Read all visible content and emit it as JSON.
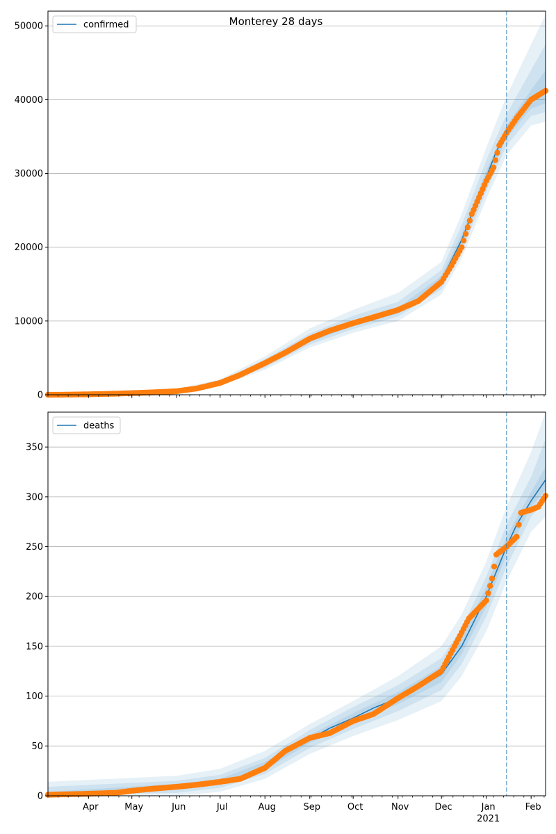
{
  "title": "Monterey 28 days",
  "colors": {
    "line": "#1f77b4",
    "points": "#ff7f0e",
    "band": "#1f77b4",
    "grid": "#b0b0b0",
    "vline": "#1f77b4"
  },
  "x_axis": {
    "start": "2020-03-04",
    "end": "2021-02-11",
    "month_labels": [
      {
        "date": "2020-04-01",
        "label": "Apr"
      },
      {
        "date": "2020-05-01",
        "label": "May"
      },
      {
        "date": "2020-06-01",
        "label": "Jun"
      },
      {
        "date": "2020-07-01",
        "label": "Jul"
      },
      {
        "date": "2020-08-01",
        "label": "Aug"
      },
      {
        "date": "2020-09-01",
        "label": "Sep"
      },
      {
        "date": "2020-10-01",
        "label": "Oct"
      },
      {
        "date": "2020-11-01",
        "label": "Nov"
      },
      {
        "date": "2020-12-01",
        "label": "Dec"
      },
      {
        "date": "2021-01-01",
        "label": "Jan"
      },
      {
        "date": "2021-02-01",
        "label": "Feb"
      }
    ],
    "year_label": {
      "date": "2021-01-01",
      "label": "2021"
    },
    "forecast_start": "2021-01-15"
  },
  "chart_data": [
    {
      "type": "line",
      "name": "confirmed",
      "legend": "confirmed",
      "legend_position": "top-left",
      "grid": "y",
      "ylim": [
        0,
        52000
      ],
      "yticks": [
        0,
        10000,
        20000,
        30000,
        40000,
        50000
      ],
      "model": [
        {
          "x": "2020-03-04",
          "y": 0
        },
        {
          "x": "2020-04-01",
          "y": 50
        },
        {
          "x": "2020-05-01",
          "y": 200
        },
        {
          "x": "2020-06-01",
          "y": 500
        },
        {
          "x": "2020-06-15",
          "y": 900
        },
        {
          "x": "2020-07-01",
          "y": 1600
        },
        {
          "x": "2020-07-15",
          "y": 2600
        },
        {
          "x": "2020-08-01",
          "y": 4200
        },
        {
          "x": "2020-08-15",
          "y": 5800
        },
        {
          "x": "2020-09-01",
          "y": 7500
        },
        {
          "x": "2020-09-15",
          "y": 8700
        },
        {
          "x": "2020-10-01",
          "y": 9700
        },
        {
          "x": "2020-10-15",
          "y": 10500
        },
        {
          "x": "2020-11-01",
          "y": 11400
        },
        {
          "x": "2020-11-15",
          "y": 12700
        },
        {
          "x": "2020-12-01",
          "y": 15500
        },
        {
          "x": "2020-12-15",
          "y": 21000
        },
        {
          "x": "2021-01-01",
          "y": 29500
        },
        {
          "x": "2021-01-08",
          "y": 33000
        },
        {
          "x": "2021-01-15",
          "y": 35600
        },
        {
          "x": "2021-01-22",
          "y": 37500
        },
        {
          "x": "2021-02-01",
          "y": 39800
        },
        {
          "x": "2021-02-11",
          "y": 41500
        }
      ],
      "bands": [
        {
          "level": "outer",
          "x": [
            "2020-03-04",
            "2020-06-01",
            "2020-07-01",
            "2020-08-01",
            "2020-09-01",
            "2020-10-01",
            "2020-11-01",
            "2020-12-01",
            "2020-12-15",
            "2021-01-01",
            "2021-01-15",
            "2021-02-01",
            "2021-02-11"
          ],
          "lower": [
            0,
            300,
            1200,
            3400,
            6400,
            8400,
            10000,
            13600,
            18500,
            26500,
            32500,
            36500,
            37000
          ],
          "upper": [
            300,
            800,
            2100,
            5200,
            9000,
            11500,
            13800,
            18000,
            24500,
            33500,
            40500,
            47500,
            51500
          ]
        },
        {
          "level": "middle",
          "x": [
            "2020-03-04",
            "2020-06-01",
            "2020-07-01",
            "2020-08-01",
            "2020-09-01",
            "2020-10-01",
            "2020-11-01",
            "2020-12-01",
            "2020-12-15",
            "2021-01-01",
            "2021-01-15",
            "2021-02-01",
            "2021-02-11"
          ],
          "lower": [
            0,
            380,
            1350,
            3700,
            6800,
            8900,
            10600,
            14300,
            19400,
            27600,
            33800,
            37800,
            38300
          ],
          "upper": [
            200,
            650,
            1850,
            4800,
            8300,
            10700,
            12600,
            16900,
            23000,
            31800,
            38000,
            44000,
            47500
          ]
        },
        {
          "level": "inner",
          "x": [
            "2020-03-04",
            "2020-06-01",
            "2020-07-01",
            "2020-08-01",
            "2020-09-01",
            "2020-10-01",
            "2020-11-01",
            "2020-12-01",
            "2020-12-15",
            "2021-01-01",
            "2021-01-15",
            "2021-02-01",
            "2021-02-11"
          ],
          "lower": [
            0,
            440,
            1480,
            3950,
            7150,
            9300,
            11000,
            14900,
            20200,
            28600,
            34800,
            38800,
            39500
          ],
          "upper": [
            100,
            570,
            1720,
            4450,
            7850,
            10100,
            11800,
            16100,
            21800,
            30400,
            36500,
            41300,
            44000
          ]
        }
      ],
      "observed": [
        {
          "x": "2020-03-04",
          "y": 0
        },
        {
          "x": "2020-03-20",
          "y": 20
        },
        {
          "x": "2020-04-01",
          "y": 60
        },
        {
          "x": "2020-04-15",
          "y": 120
        },
        {
          "x": "2020-05-01",
          "y": 220
        },
        {
          "x": "2020-05-15",
          "y": 320
        },
        {
          "x": "2020-06-01",
          "y": 480
        },
        {
          "x": "2020-06-15",
          "y": 850
        },
        {
          "x": "2020-07-01",
          "y": 1600
        },
        {
          "x": "2020-07-15",
          "y": 2700
        },
        {
          "x": "2020-08-01",
          "y": 4300
        },
        {
          "x": "2020-08-15",
          "y": 5700
        },
        {
          "x": "2020-09-01",
          "y": 7600
        },
        {
          "x": "2020-09-15",
          "y": 8700
        },
        {
          "x": "2020-10-01",
          "y": 9700
        },
        {
          "x": "2020-10-15",
          "y": 10500
        },
        {
          "x": "2020-11-01",
          "y": 11500
        },
        {
          "x": "2020-11-15",
          "y": 12700
        },
        {
          "x": "2020-12-01",
          "y": 15300
        },
        {
          "x": "2020-12-08",
          "y": 17500
        },
        {
          "x": "2020-12-15",
          "y": 20000
        },
        {
          "x": "2020-12-22",
          "y": 24500
        },
        {
          "x": "2021-01-01",
          "y": 29000
        },
        {
          "x": "2021-01-06",
          "y": 30800
        },
        {
          "x": "2021-01-10",
          "y": 33800
        },
        {
          "x": "2021-01-15",
          "y": 35500
        },
        {
          "x": "2021-01-22",
          "y": 37500
        },
        {
          "x": "2021-02-01",
          "y": 40000
        },
        {
          "x": "2021-02-11",
          "y": 41200
        }
      ]
    },
    {
      "type": "line",
      "name": "deaths",
      "legend": "deaths",
      "legend_position": "top-left",
      "grid": "y",
      "ylim": [
        0,
        385
      ],
      "yticks": [
        0,
        50,
        100,
        150,
        200,
        250,
        300,
        350
      ],
      "model": [
        {
          "x": "2020-03-04",
          "y": 0
        },
        {
          "x": "2020-04-01",
          "y": 2
        },
        {
          "x": "2020-05-01",
          "y": 5
        },
        {
          "x": "2020-06-01",
          "y": 9
        },
        {
          "x": "2020-07-01",
          "y": 14
        },
        {
          "x": "2020-07-15",
          "y": 19
        },
        {
          "x": "2020-08-01",
          "y": 30
        },
        {
          "x": "2020-08-15",
          "y": 43
        },
        {
          "x": "2020-09-01",
          "y": 57
        },
        {
          "x": "2020-09-15",
          "y": 68
        },
        {
          "x": "2020-10-01",
          "y": 78
        },
        {
          "x": "2020-10-15",
          "y": 88
        },
        {
          "x": "2020-11-01",
          "y": 98
        },
        {
          "x": "2020-11-15",
          "y": 108
        },
        {
          "x": "2020-12-01",
          "y": 122
        },
        {
          "x": "2020-12-15",
          "y": 150
        },
        {
          "x": "2021-01-01",
          "y": 200
        },
        {
          "x": "2021-01-08",
          "y": 225
        },
        {
          "x": "2021-01-15",
          "y": 250
        },
        {
          "x": "2021-01-22",
          "y": 272
        },
        {
          "x": "2021-02-01",
          "y": 296
        },
        {
          "x": "2021-02-11",
          "y": 317
        }
      ],
      "bands": [
        {
          "level": "outer",
          "x": [
            "2020-03-04",
            "2020-06-01",
            "2020-07-01",
            "2020-08-01",
            "2020-09-01",
            "2020-10-01",
            "2020-11-01",
            "2020-12-01",
            "2020-12-15",
            "2021-01-01",
            "2021-01-15",
            "2021-02-01",
            "2021-02-11"
          ],
          "lower": [
            0,
            0,
            4,
            17,
            42,
            60,
            76,
            95,
            120,
            165,
            215,
            265,
            280
          ],
          "upper": [
            14,
            20,
            27,
            45,
            72,
            95,
            120,
            150,
            182,
            235,
            290,
            345,
            385
          ]
        },
        {
          "level": "middle",
          "x": [
            "2020-03-04",
            "2020-06-01",
            "2020-07-01",
            "2020-08-01",
            "2020-09-01",
            "2020-10-01",
            "2020-11-01",
            "2020-12-01",
            "2020-12-15",
            "2021-01-01",
            "2021-01-15",
            "2021-02-01",
            "2021-02-11"
          ],
          "lower": [
            0,
            3,
            8,
            22,
            48,
            67,
            85,
            106,
            132,
            180,
            230,
            280,
            298
          ],
          "upper": [
            9,
            15,
            21,
            38,
            66,
            89,
            111,
            138,
            168,
            220,
            272,
            320,
            358
          ]
        },
        {
          "level": "inner",
          "x": [
            "2020-03-04",
            "2020-06-01",
            "2020-07-01",
            "2020-08-01",
            "2020-09-01",
            "2020-10-01",
            "2020-11-01",
            "2020-12-01",
            "2020-12-15",
            "2021-01-01",
            "2021-01-15",
            "2021-02-01",
            "2021-02-11"
          ],
          "lower": [
            0,
            6,
            11,
            26,
            53,
            73,
            92,
            114,
            142,
            190,
            242,
            290,
            307
          ],
          "upper": [
            4,
            12,
            17,
            34,
            61,
            83,
            104,
            130,
            158,
            210,
            260,
            305,
            330
          ]
        }
      ],
      "observed": [
        {
          "x": "2020-03-04",
          "y": 1
        },
        {
          "x": "2020-04-01",
          "y": 2
        },
        {
          "x": "2020-04-20",
          "y": 3
        },
        {
          "x": "2020-05-01",
          "y": 5
        },
        {
          "x": "2020-05-15",
          "y": 7
        },
        {
          "x": "2020-06-01",
          "y": 9
        },
        {
          "x": "2020-06-15",
          "y": 11
        },
        {
          "x": "2020-07-01",
          "y": 14
        },
        {
          "x": "2020-07-15",
          "y": 17
        },
        {
          "x": "2020-08-01",
          "y": 28
        },
        {
          "x": "2020-08-15",
          "y": 45
        },
        {
          "x": "2020-09-01",
          "y": 58
        },
        {
          "x": "2020-09-15",
          "y": 63
        },
        {
          "x": "2020-10-01",
          "y": 75
        },
        {
          "x": "2020-10-15",
          "y": 82
        },
        {
          "x": "2020-11-01",
          "y": 98
        },
        {
          "x": "2020-11-15",
          "y": 110
        },
        {
          "x": "2020-12-01",
          "y": 125
        },
        {
          "x": "2020-12-10",
          "y": 150
        },
        {
          "x": "2020-12-20",
          "y": 178
        },
        {
          "x": "2021-01-01",
          "y": 196
        },
        {
          "x": "2021-01-05",
          "y": 218
        },
        {
          "x": "2021-01-08",
          "y": 242
        },
        {
          "x": "2021-01-15",
          "y": 250
        },
        {
          "x": "2021-01-22",
          "y": 260
        },
        {
          "x": "2021-01-25",
          "y": 284
        },
        {
          "x": "2021-02-01",
          "y": 287
        },
        {
          "x": "2021-02-06",
          "y": 290
        },
        {
          "x": "2021-02-11",
          "y": 301
        }
      ]
    }
  ]
}
